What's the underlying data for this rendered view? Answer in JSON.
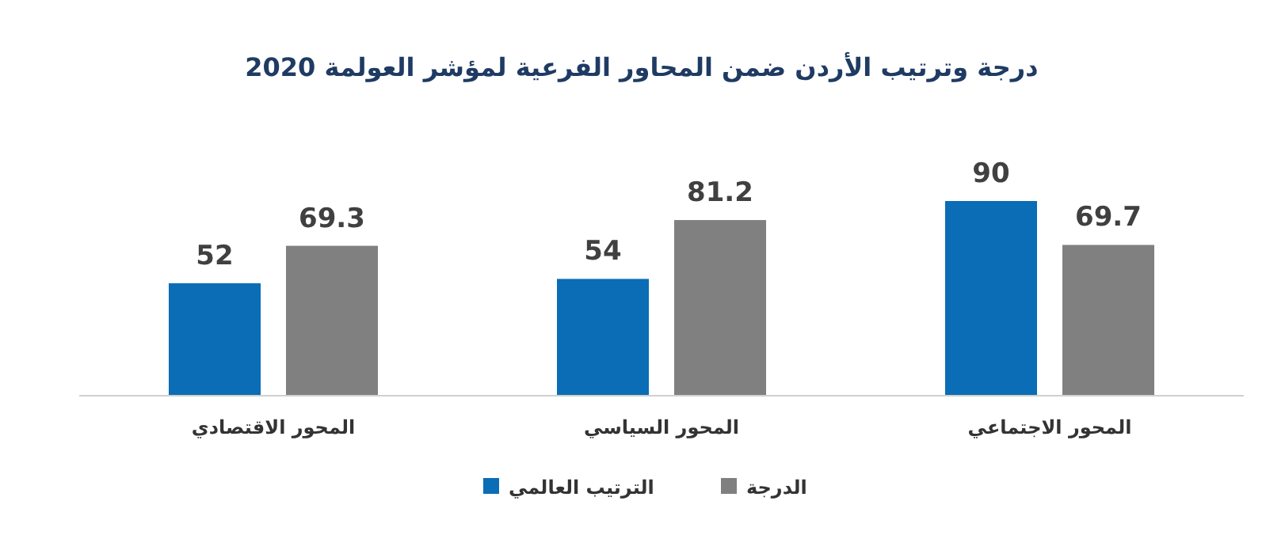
{
  "chart_data": {
    "type": "bar",
    "title": "درجة وترتيب الأردن ضمن المحاور الفرعية لمؤشر العولمة 2020",
    "categories": [
      "المحور الاقتصادي",
      "المحور السياسي",
      "المحور الاجتماعي"
    ],
    "series": [
      {
        "name": "الترتيب العالمي",
        "color": "#0a6db5",
        "values": [
          52,
          54,
          90
        ]
      },
      {
        "name": "الدرجة",
        "color": "#808080",
        "values": [
          69.3,
          81.2,
          69.7
        ]
      }
    ],
    "data_labels": true,
    "legend": "bottom",
    "grid": false
  }
}
